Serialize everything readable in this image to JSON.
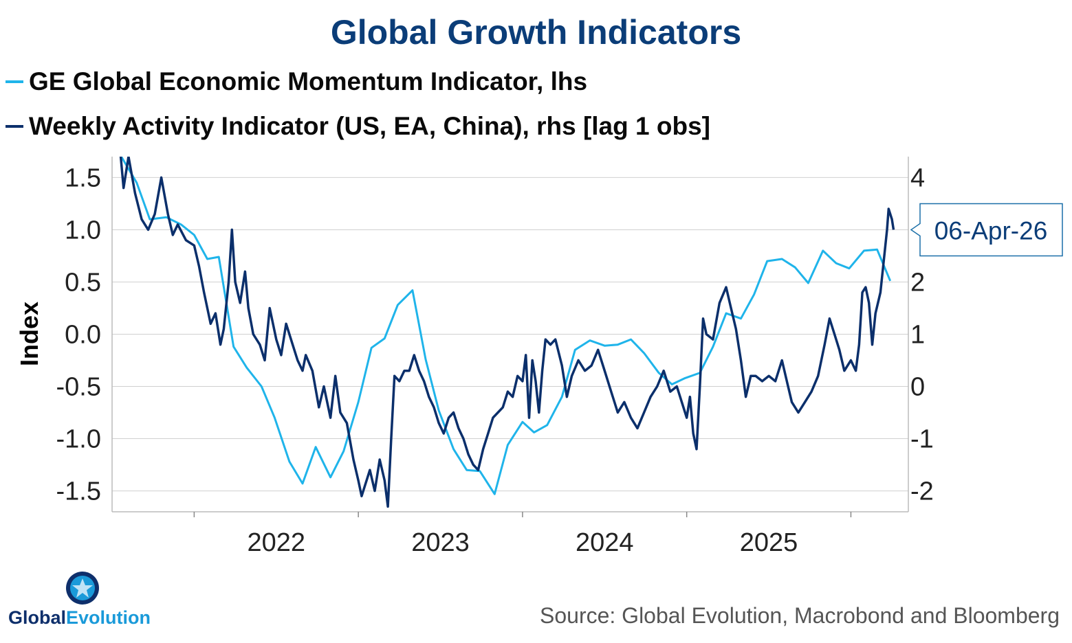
{
  "title": "Global Growth Indicators",
  "colors": {
    "title": "#0b3d78",
    "series_light": "#1fb4ea",
    "series_dark": "#0b2f6b",
    "grid": "#d0d0d0"
  },
  "chart_data": {
    "type": "line",
    "title": "Global Growth Indicators",
    "ylabel": "Index",
    "y_left": {
      "min": -1.7,
      "max": 1.7,
      "ticks": [
        1.5,
        1.0,
        0.5,
        0.0,
        -0.5,
        -1.0,
        -1.5
      ],
      "tick_labels": [
        "1.5",
        "1.0",
        "0.5",
        "0.0",
        "-0.5",
        "-1.0",
        "-1.5"
      ]
    },
    "y_right": {
      "min": -2.4,
      "max": 4.4,
      "ticks": [
        4,
        3,
        2,
        1,
        0,
        -1,
        -2
      ],
      "tick_labels": [
        "4",
        "",
        "2",
        "1",
        "0",
        "-1",
        "-2"
      ]
    },
    "x": {
      "min": 2021.5,
      "max": 2026.35,
      "year_labels": [
        "2022",
        "2023",
        "2024",
        "2025"
      ],
      "year_label_positions": [
        2022.5,
        2023.5,
        2024.5,
        2025.5
      ],
      "tick_marks": [
        2022.0,
        2023.0,
        2024.0,
        2025.0,
        2026.0
      ]
    },
    "series": [
      {
        "name": "GE Global Economic Momentum Indicator, lhs",
        "axis": "left",
        "color": "#1fb4ea",
        "points": [
          [
            2021.5,
            1.85
          ],
          [
            2021.65,
            1.45
          ],
          [
            2021.73,
            1.1
          ],
          [
            2021.83,
            1.12
          ],
          [
            2021.92,
            1.05
          ],
          [
            2022.0,
            0.95
          ],
          [
            2022.08,
            0.72
          ],
          [
            2022.15,
            0.74
          ],
          [
            2022.24,
            -0.12
          ],
          [
            2022.32,
            -0.32
          ],
          [
            2022.41,
            -0.5
          ],
          [
            2022.49,
            -0.8
          ],
          [
            2022.58,
            -1.22
          ],
          [
            2022.66,
            -1.43
          ],
          [
            2022.74,
            -1.08
          ],
          [
            2022.83,
            -1.37
          ],
          [
            2022.91,
            -1.12
          ],
          [
            2023.0,
            -0.65
          ],
          [
            2023.08,
            -0.13
          ],
          [
            2023.16,
            -0.04
          ],
          [
            2023.24,
            0.28
          ],
          [
            2023.33,
            0.42
          ],
          [
            2023.41,
            -0.24
          ],
          [
            2023.49,
            -0.73
          ],
          [
            2023.58,
            -1.1
          ],
          [
            2023.66,
            -1.3
          ],
          [
            2023.74,
            -1.31
          ],
          [
            2023.83,
            -1.53
          ],
          [
            2023.91,
            -1.06
          ],
          [
            2024.0,
            -0.84
          ],
          [
            2024.07,
            -0.94
          ],
          [
            2024.15,
            -0.87
          ],
          [
            2024.24,
            -0.6
          ],
          [
            2024.32,
            -0.15
          ],
          [
            2024.41,
            -0.06
          ],
          [
            2024.5,
            -0.11
          ],
          [
            2024.58,
            -0.1
          ],
          [
            2024.66,
            -0.05
          ],
          [
            2024.74,
            -0.18
          ],
          [
            2024.83,
            -0.37
          ],
          [
            2024.91,
            -0.48
          ],
          [
            2024.99,
            -0.42
          ],
          [
            2025.08,
            -0.37
          ],
          [
            2025.16,
            -0.12
          ],
          [
            2025.24,
            0.2
          ],
          [
            2025.33,
            0.15
          ],
          [
            2025.41,
            0.38
          ],
          [
            2025.49,
            0.7
          ],
          [
            2025.58,
            0.72
          ],
          [
            2025.66,
            0.64
          ],
          [
            2025.74,
            0.49
          ],
          [
            2025.83,
            0.8
          ],
          [
            2025.91,
            0.68
          ],
          [
            2025.99,
            0.63
          ],
          [
            2026.08,
            0.8
          ],
          [
            2026.16,
            0.81
          ],
          [
            2026.24,
            0.51
          ]
        ]
      },
      {
        "name": "Weekly Activity Indicator (US, EA, China), rhs [lag 1 obs]",
        "axis": "right",
        "color": "#0b2f6b",
        "label_last": "06-Apr-26",
        "points": [
          [
            2021.55,
            4.5
          ],
          [
            2021.57,
            3.8
          ],
          [
            2021.6,
            4.4
          ],
          [
            2021.64,
            3.7
          ],
          [
            2021.68,
            3.2
          ],
          [
            2021.72,
            3.0
          ],
          [
            2021.76,
            3.3
          ],
          [
            2021.8,
            4.0
          ],
          [
            2021.84,
            3.3
          ],
          [
            2021.87,
            2.9
          ],
          [
            2021.9,
            3.1
          ],
          [
            2021.95,
            2.8
          ],
          [
            2022.0,
            2.7
          ],
          [
            2022.03,
            2.3
          ],
          [
            2022.06,
            1.8
          ],
          [
            2022.1,
            1.2
          ],
          [
            2022.13,
            1.4
          ],
          [
            2022.16,
            0.8
          ],
          [
            2022.18,
            1.1
          ],
          [
            2022.21,
            2.0
          ],
          [
            2022.23,
            3.0
          ],
          [
            2022.25,
            2.0
          ],
          [
            2022.28,
            1.6
          ],
          [
            2022.31,
            2.2
          ],
          [
            2022.33,
            1.5
          ],
          [
            2022.36,
            1.0
          ],
          [
            2022.4,
            0.8
          ],
          [
            2022.43,
            0.5
          ],
          [
            2022.46,
            1.5
          ],
          [
            2022.5,
            0.9
          ],
          [
            2022.53,
            0.6
          ],
          [
            2022.56,
            1.2
          ],
          [
            2022.6,
            0.8
          ],
          [
            2022.63,
            0.5
          ],
          [
            2022.66,
            0.3
          ],
          [
            2022.68,
            0.6
          ],
          [
            2022.72,
            0.3
          ],
          [
            2022.76,
            -0.4
          ],
          [
            2022.79,
            0.0
          ],
          [
            2022.83,
            -0.6
          ],
          [
            2022.86,
            0.2
          ],
          [
            2022.89,
            -0.5
          ],
          [
            2022.93,
            -0.7
          ],
          [
            2022.97,
            -1.4
          ],
          [
            2023.0,
            -1.8
          ],
          [
            2023.02,
            -2.1
          ],
          [
            2023.04,
            -1.9
          ],
          [
            2023.07,
            -1.6
          ],
          [
            2023.1,
            -2.0
          ],
          [
            2023.13,
            -1.4
          ],
          [
            2023.16,
            -1.8
          ],
          [
            2023.18,
            -2.3
          ],
          [
            2023.2,
            -1.0
          ],
          [
            2023.22,
            0.2
          ],
          [
            2023.25,
            0.1
          ],
          [
            2023.28,
            0.3
          ],
          [
            2023.31,
            0.3
          ],
          [
            2023.34,
            0.6
          ],
          [
            2023.37,
            0.3
          ],
          [
            2023.4,
            0.1
          ],
          [
            2023.43,
            -0.2
          ],
          [
            2023.46,
            -0.4
          ],
          [
            2023.49,
            -0.7
          ],
          [
            2023.52,
            -0.9
          ],
          [
            2023.55,
            -0.6
          ],
          [
            2023.58,
            -0.5
          ],
          [
            2023.61,
            -0.8
          ],
          [
            2023.64,
            -1.0
          ],
          [
            2023.67,
            -1.3
          ],
          [
            2023.7,
            -1.5
          ],
          [
            2023.73,
            -1.6
          ],
          [
            2023.76,
            -1.2
          ],
          [
            2023.79,
            -0.9
          ],
          [
            2023.82,
            -0.6
          ],
          [
            2023.85,
            -0.5
          ],
          [
            2023.88,
            -0.4
          ],
          [
            2023.91,
            -0.1
          ],
          [
            2023.94,
            -0.2
          ],
          [
            2023.97,
            0.2
          ],
          [
            2024.0,
            0.1
          ],
          [
            2024.02,
            0.6
          ],
          [
            2024.04,
            -0.6
          ],
          [
            2024.06,
            0.5
          ],
          [
            2024.08,
            0.1
          ],
          [
            2024.1,
            -0.5
          ],
          [
            2024.12,
            0.3
          ],
          [
            2024.14,
            0.9
          ],
          [
            2024.17,
            0.8
          ],
          [
            2024.2,
            0.9
          ],
          [
            2024.24,
            0.4
          ],
          [
            2024.27,
            -0.2
          ],
          [
            2024.3,
            0.2
          ],
          [
            2024.34,
            0.5
          ],
          [
            2024.38,
            0.3
          ],
          [
            2024.42,
            0.4
          ],
          [
            2024.46,
            0.7
          ],
          [
            2024.5,
            0.3
          ],
          [
            2024.54,
            -0.1
          ],
          [
            2024.58,
            -0.5
          ],
          [
            2024.62,
            -0.3
          ],
          [
            2024.66,
            -0.6
          ],
          [
            2024.7,
            -0.8
          ],
          [
            2024.74,
            -0.5
          ],
          [
            2024.78,
            -0.2
          ],
          [
            2024.82,
            0.0
          ],
          [
            2024.86,
            0.3
          ],
          [
            2024.9,
            -0.1
          ],
          [
            2024.94,
            0.0
          ],
          [
            2024.97,
            -0.3
          ],
          [
            2025.0,
            -0.6
          ],
          [
            2025.02,
            -0.2
          ],
          [
            2025.04,
            -0.9
          ],
          [
            2025.06,
            -1.2
          ],
          [
            2025.08,
            0.0
          ],
          [
            2025.1,
            1.3
          ],
          [
            2025.12,
            1.0
          ],
          [
            2025.16,
            0.9
          ],
          [
            2025.2,
            1.6
          ],
          [
            2025.24,
            1.9
          ],
          [
            2025.27,
            1.5
          ],
          [
            2025.3,
            1.1
          ],
          [
            2025.33,
            0.5
          ],
          [
            2025.36,
            -0.2
          ],
          [
            2025.39,
            0.2
          ],
          [
            2025.42,
            0.2
          ],
          [
            2025.46,
            0.1
          ],
          [
            2025.5,
            0.2
          ],
          [
            2025.54,
            0.1
          ],
          [
            2025.58,
            0.5
          ],
          [
            2025.61,
            0.1
          ],
          [
            2025.64,
            -0.3
          ],
          [
            2025.68,
            -0.5
          ],
          [
            2025.72,
            -0.3
          ],
          [
            2025.76,
            -0.1
          ],
          [
            2025.8,
            0.2
          ],
          [
            2025.84,
            0.8
          ],
          [
            2025.87,
            1.3
          ],
          [
            2025.9,
            1.0
          ],
          [
            2025.93,
            0.7
          ],
          [
            2025.96,
            0.3
          ],
          [
            2026.0,
            0.5
          ],
          [
            2026.03,
            0.3
          ],
          [
            2026.05,
            0.8
          ],
          [
            2026.07,
            1.8
          ],
          [
            2026.09,
            1.9
          ],
          [
            2026.11,
            1.6
          ],
          [
            2026.13,
            0.8
          ],
          [
            2026.15,
            1.4
          ],
          [
            2026.18,
            1.8
          ],
          [
            2026.2,
            2.4
          ],
          [
            2026.22,
            3.0
          ],
          [
            2026.23,
            3.4
          ],
          [
            2026.25,
            3.2
          ],
          [
            2026.26,
            3.0
          ]
        ]
      }
    ],
    "last_label": "06-Apr-26"
  },
  "legend": [
    {
      "label": "GE Global Economic Momentum Indicator, lhs"
    },
    {
      "label": "Weekly Activity Indicator (US, EA, China), rhs [lag 1 obs]"
    }
  ],
  "logo": {
    "text_a": "Global",
    "text_b": "Evolution"
  },
  "source": "Source: Global Evolution, Macrobond and Bloomberg"
}
